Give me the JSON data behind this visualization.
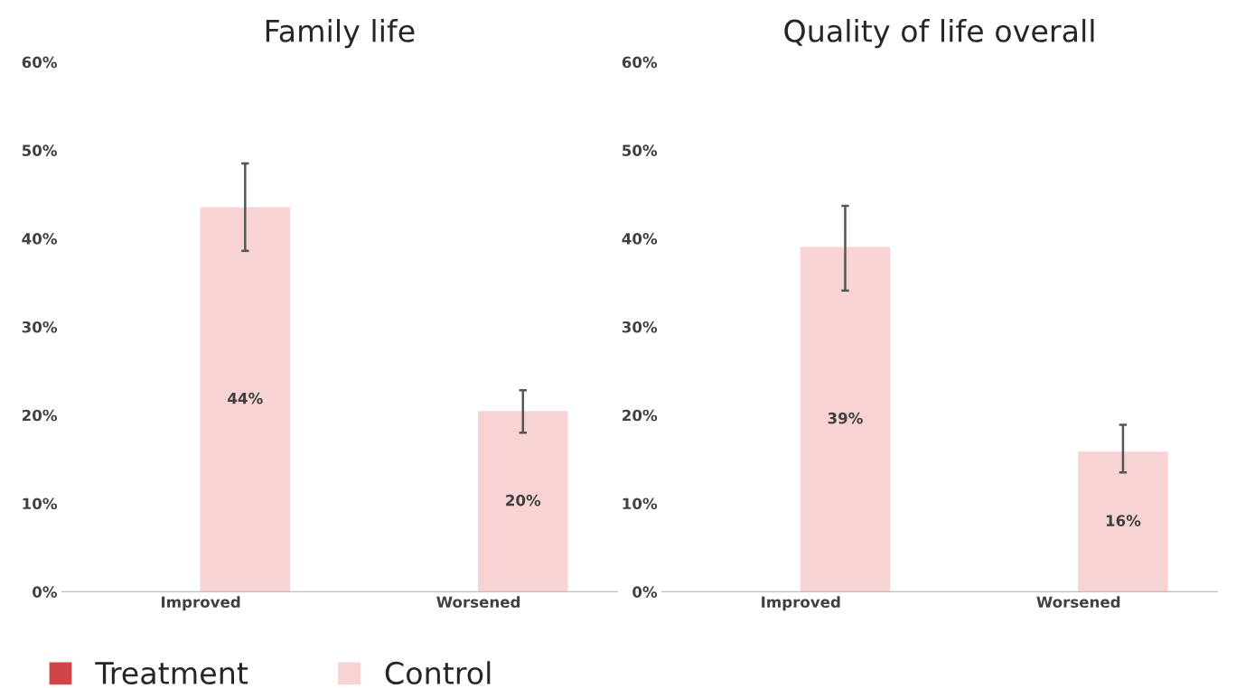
{
  "chart_data": [
    {
      "type": "bar",
      "title": "Family life",
      "categories": [
        "Improved",
        "Worsened"
      ],
      "series": [
        {
          "name": "Treatment",
          "color": "#d04545",
          "values": [
            null,
            null
          ]
        },
        {
          "name": "Control",
          "color": "#f7d3d3",
          "values": [
            43.5,
            20.4
          ],
          "errors": [
            [
              38.6,
              48.5
            ],
            [
              18.0,
              22.8
            ]
          ],
          "value_labels": [
            "44%",
            "20%"
          ]
        }
      ],
      "ylim": [
        0,
        60
      ],
      "yticks": [
        {
          "value": 0,
          "label": "0%"
        },
        {
          "value": 10,
          "label": "10%"
        },
        {
          "value": 20,
          "label": "20%"
        },
        {
          "value": 30,
          "label": "30%"
        },
        {
          "value": 40,
          "label": "40%"
        },
        {
          "value": 50,
          "label": "50%"
        },
        {
          "value": 60,
          "label": "60%"
        }
      ],
      "grid": false,
      "legend": "bottom"
    },
    {
      "type": "bar",
      "title": "Quality of life overall",
      "categories": [
        "Improved",
        "Worsened"
      ],
      "series": [
        {
          "color": "#d04545",
          "values": [
            null,
            null
          ]
        },
        {
          "color": "#f7d3d3",
          "values": [
            39.0,
            15.8
          ],
          "errors": [
            [
              34.1,
              43.7
            ],
            [
              13.5,
              18.9
            ]
          ],
          "value_labels": [
            "39%",
            "16%"
          ]
        }
      ],
      "ylim": [
        0,
        60
      ],
      "yticks": [
        {
          "value": 0,
          "label": "0%"
        },
        {
          "value": 10,
          "label": "10%"
        },
        {
          "value": 20,
          "label": "20%"
        },
        {
          "value": 30,
          "label": "30%"
        },
        {
          "value": 40,
          "label": "40%"
        },
        {
          "value": 50,
          "label": "50%"
        },
        {
          "value": 60,
          "label": "60%"
        }
      ],
      "grid": false,
      "legend": false
    }
  ]
}
